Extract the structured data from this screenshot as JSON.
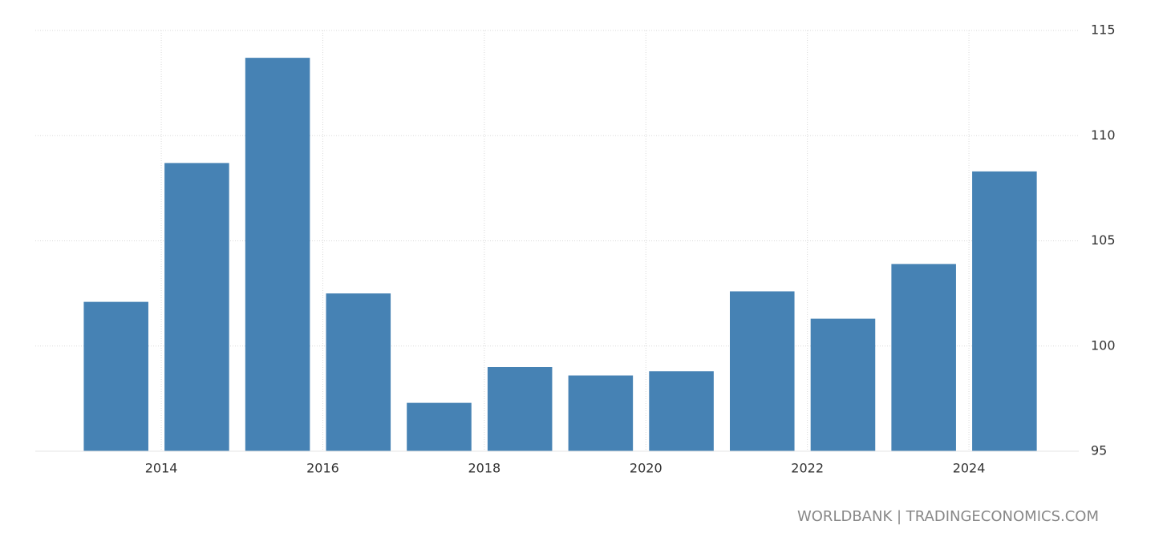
{
  "chart_data": {
    "type": "bar",
    "x": [
      2013,
      2014,
      2015,
      2016,
      2017,
      2018,
      2019,
      2020,
      2021,
      2022,
      2023,
      2024
    ],
    "values": [
      102.1,
      108.7,
      113.7,
      102.5,
      97.3,
      99.0,
      98.6,
      98.8,
      102.6,
      101.3,
      103.9,
      108.3
    ],
    "color": "#4682b4",
    "xlim": [
      2012.44,
      2025.36
    ],
    "xticks": [
      2014,
      2016,
      2018,
      2020,
      2022,
      2024
    ],
    "ylim": [
      95,
      115
    ],
    "yticks": [
      95,
      100,
      105,
      110,
      115
    ],
    "grid": true,
    "source": "WORLDBANK | TRADINGECONOMICS.COM"
  }
}
